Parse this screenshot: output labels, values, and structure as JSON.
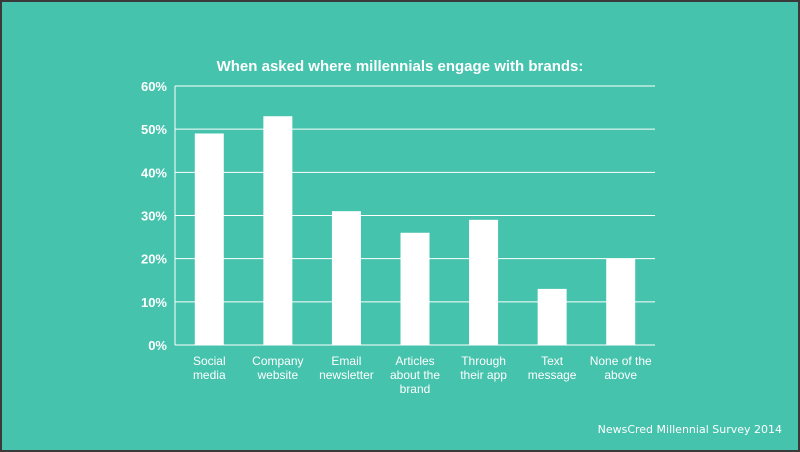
{
  "chart_data": {
    "type": "bar",
    "title": "When asked where millennials engage with brands:",
    "categories": [
      [
        "Social",
        "media"
      ],
      [
        "Company",
        "website"
      ],
      [
        "Email",
        "newsletter"
      ],
      [
        "Articles",
        "about the",
        "brand"
      ],
      [
        "Through",
        "their app"
      ],
      [
        "Text",
        "message"
      ],
      [
        "None of the",
        "above"
      ]
    ],
    "values": [
      49,
      53,
      31,
      26,
      29,
      13,
      20
    ],
    "yticks": [
      "0%",
      "10%",
      "20%",
      "30%",
      "40%",
      "50%",
      "60%"
    ],
    "ylim": [
      0,
      60
    ],
    "ytick_step": 10,
    "grid": true,
    "colors": {
      "background": "#45c3ad",
      "bar": "#ffffff",
      "grid": "#ffffff",
      "text": "#ffffff"
    }
  },
  "footer": {
    "source": "NewsCred Millennial Survey 2014"
  }
}
